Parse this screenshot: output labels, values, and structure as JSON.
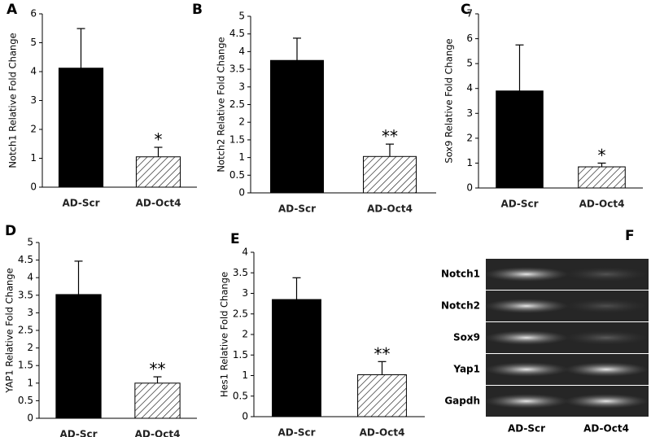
{
  "chart_data": [
    {
      "type": "bar",
      "panel": "A",
      "ylabel": "Notch1 Relative Fold Change",
      "categories": [
        "AD-Scr",
        "AD-Oct4"
      ],
      "values": [
        4.12,
        1.05
      ],
      "errors": [
        1.37,
        0.33
      ],
      "color": "#000000",
      "hatch": [
        false,
        true
      ],
      "annotation": "*",
      "ylim": [
        0,
        6
      ],
      "yticks": [
        0,
        1,
        2,
        3,
        4,
        5,
        6
      ]
    },
    {
      "type": "bar",
      "panel": "B",
      "ylabel": "Notch2 Relative Fold Change",
      "categories": [
        "AD-Scr",
        "AD-Oct4"
      ],
      "values": [
        3.75,
        1.03
      ],
      "errors": [
        0.63,
        0.35
      ],
      "color": "#000000",
      "hatch": [
        false,
        true
      ],
      "annotation": "**",
      "ylim": [
        0,
        5
      ],
      "yticks": [
        0,
        0.5,
        1,
        1.5,
        2,
        2.5,
        3,
        3.5,
        4,
        4.5,
        5
      ]
    },
    {
      "type": "bar",
      "panel": "C",
      "ylabel": "Sox9 Relative Fold Change",
      "categories": [
        "AD-Scr",
        "AD-Oct4"
      ],
      "values": [
        3.9,
        0.85
      ],
      "errors": [
        1.85,
        0.15
      ],
      "color": "#000000",
      "hatch": [
        false,
        true
      ],
      "annotation": "*",
      "ylim": [
        0,
        7
      ],
      "yticks": [
        0,
        1,
        2,
        3,
        4,
        5,
        6,
        7
      ]
    },
    {
      "type": "bar",
      "panel": "D",
      "ylabel": "YAP1 Relative Fold Change",
      "categories": [
        "AD-Scr",
        "AD-Oct4"
      ],
      "values": [
        3.52,
        1.0
      ],
      "errors": [
        0.95,
        0.18
      ],
      "color": "#000000",
      "hatch": [
        false,
        true
      ],
      "annotation": "**",
      "ylim": [
        0,
        5
      ],
      "yticks": [
        0,
        0.5,
        1,
        1.5,
        2,
        2.5,
        3,
        3.5,
        4,
        4.5,
        5
      ]
    },
    {
      "type": "bar",
      "panel": "E",
      "ylabel": "Hes1 Relative Fold Change",
      "categories": [
        "AD-Scr",
        "AD-Oct4"
      ],
      "values": [
        2.85,
        1.02
      ],
      "errors": [
        0.53,
        0.32
      ],
      "color": "#000000",
      "hatch": [
        false,
        true
      ],
      "annotation": "**",
      "ylim": [
        0,
        4
      ],
      "yticks": [
        0,
        0.5,
        1,
        1.5,
        2,
        2.5,
        3,
        3.5,
        4
      ]
    }
  ],
  "gel": {
    "panel": "F",
    "rows": [
      "Notch1",
      "Notch2",
      "Sox9",
      "Yap1",
      "Gapdh"
    ],
    "columns": [
      "AD-Scr",
      "AD-Oct4"
    ]
  }
}
